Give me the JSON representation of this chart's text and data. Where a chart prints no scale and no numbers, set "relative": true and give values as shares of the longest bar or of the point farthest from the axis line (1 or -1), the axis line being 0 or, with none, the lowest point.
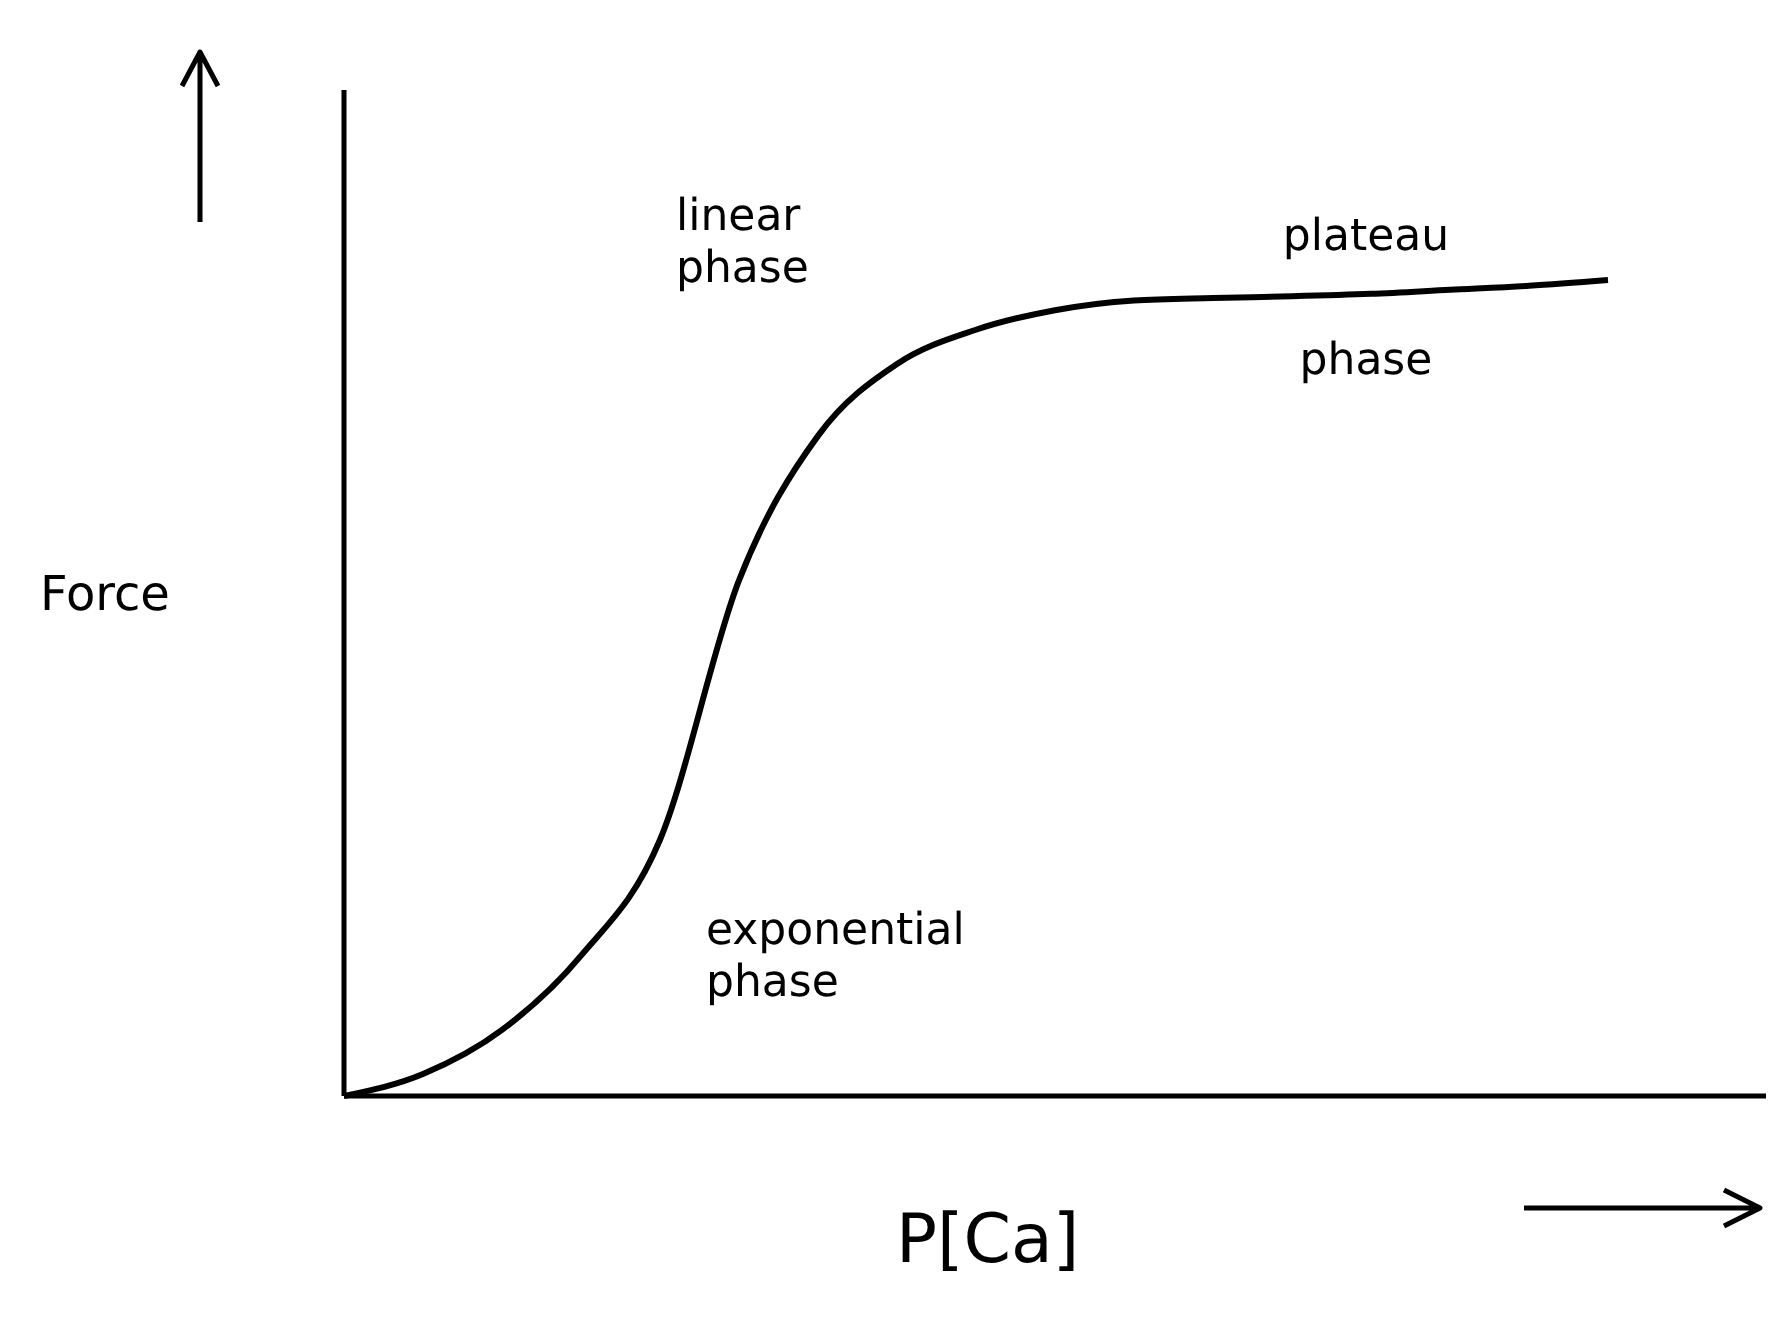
{
  "chart_data": {
    "type": "line",
    "xlabel": "P[Ca]",
    "ylabel": "Force",
    "relative": true,
    "marker": "none",
    "line_style": "solid",
    "annotations": [
      "linear phase",
      "exponential phase",
      "plateau phase"
    ],
    "categories": [
      null,
      null,
      null,
      null,
      null,
      null,
      null,
      null,
      null,
      null,
      null,
      null,
      null,
      null,
      null,
      null,
      null,
      null,
      null
    ],
    "series": [
      {
        "color": "#000000",
        "values": [
          0,
          0.027,
          0.081,
          0.172,
          0.314,
          0.632,
          0.809,
          0.897,
          0.939,
          0.963,
          0.975,
          0.978,
          0.98,
          0.983,
          0.988,
          0.993,
          1,
          null,
          null
        ]
      }
    ]
  }
}
